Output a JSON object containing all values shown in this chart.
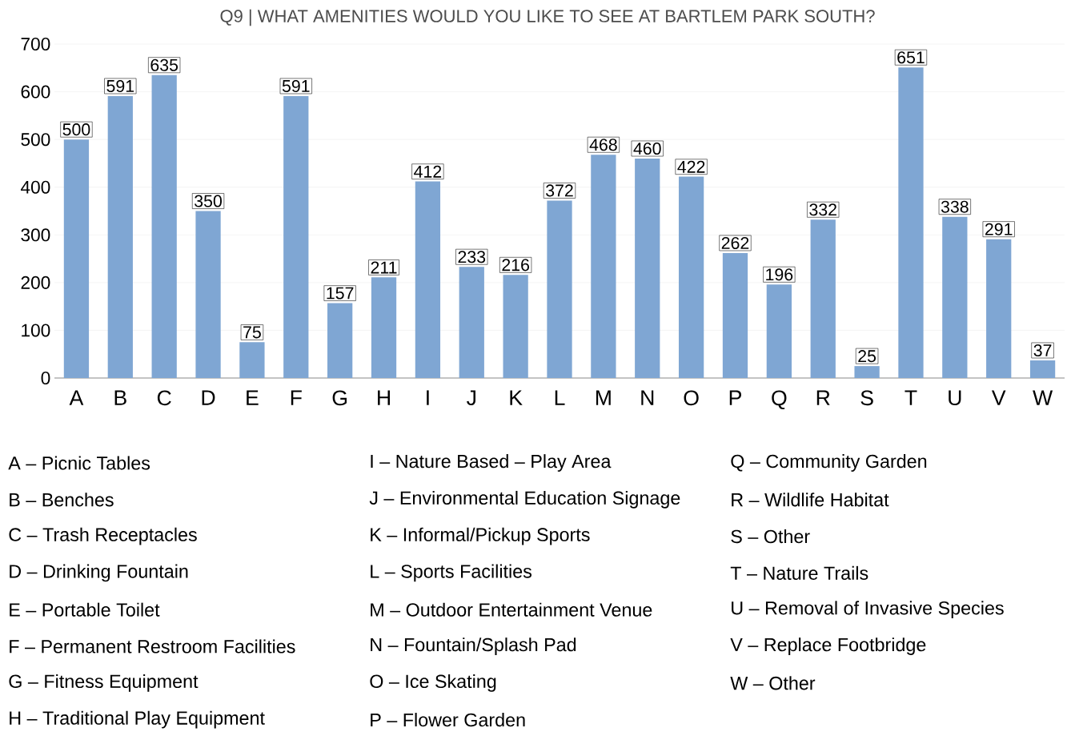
{
  "chart_data": {
    "type": "bar",
    "title": "Q9 | WHAT AMENITIES WOULD YOU LIKE TO SEE AT BARTLEM PARK SOUTH?",
    "categories": [
      "A",
      "B",
      "C",
      "D",
      "E",
      "F",
      "G",
      "H",
      "I",
      "J",
      "K",
      "L",
      "M",
      "N",
      "O",
      "P",
      "Q",
      "R",
      "S",
      "T",
      "U",
      "V",
      "W"
    ],
    "values": [
      500,
      591,
      635,
      350,
      75,
      591,
      157,
      211,
      412,
      233,
      216,
      372,
      468,
      460,
      422,
      262,
      196,
      332,
      25,
      651,
      338,
      291,
      37
    ],
    "color": "#7fa6d3",
    "ylim": [
      0,
      700
    ],
    "yticks": [
      0,
      100,
      200,
      300,
      400,
      500,
      600,
      700
    ],
    "grid": "y",
    "data_labels": true,
    "annotations": [
      "A – Picnic Tables",
      "B – Benches",
      "C – Trash Receptacles",
      "D – Drinking Fountain",
      "E – Portable Toilet",
      "F – Permanent Restroom Facilities",
      "G – Fitness Equipment",
      "H – Traditional Play Equipment",
      "I – Nature Based – Play Area",
      "J – Environmental Education Signage",
      "K – Informal/Pickup Sports",
      "L – Sports Facilities",
      "M – Outdoor Entertainment Venue",
      "N – Fountain/Splash Pad",
      "O – Ice Skating",
      "P – Flower Garden",
      "Q – Community Garden",
      "R – Wildlife Habitat",
      "S – Other",
      "T – Nature Trails",
      "U – Removal of Invasive Species",
      "V – Replace Footbridge",
      "W – Other"
    ]
  }
}
